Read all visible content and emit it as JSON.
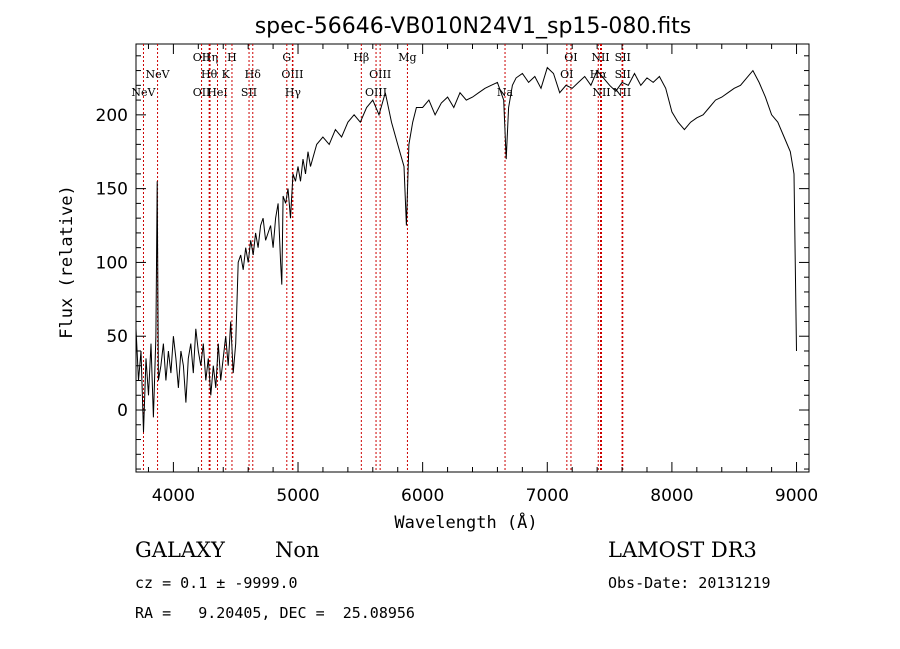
{
  "chart_data": {
    "type": "line",
    "title": "spec-56646-VB010N24V1_sp15-080.fits",
    "xlabel": "Wavelength (Å)",
    "ylabel": "Flux (relative)",
    "xlim": [
      3700,
      9100
    ],
    "ylim": [
      -42,
      248
    ],
    "xticks": [
      4000,
      5000,
      6000,
      7000,
      8000,
      9000
    ],
    "yticks": [
      0,
      50,
      100,
      150,
      200
    ],
    "line_color": "#000000",
    "marker_color": "#cc0000",
    "series": [
      {
        "x": [
          3700,
          3720,
          3740,
          3760,
          3780,
          3800,
          3820,
          3840,
          3860,
          3870,
          3880,
          3900,
          3920,
          3940,
          3960,
          3980,
          4000,
          4020,
          4040,
          4060,
          4080,
          4100,
          4120,
          4140,
          4160,
          4180,
          4200,
          4220,
          4240,
          4260,
          4280,
          4300,
          4320,
          4340,
          4360,
          4380,
          4400,
          4420,
          4440,
          4460,
          4480,
          4500,
          4520,
          4540,
          4560,
          4580,
          4600,
          4620,
          4640,
          4660,
          4680,
          4700,
          4720,
          4740,
          4760,
          4780,
          4800,
          4820,
          4840,
          4860,
          4870,
          4880,
          4900,
          4920,
          4940,
          4960,
          4980,
          5000,
          5020,
          5040,
          5060,
          5080,
          5100,
          5150,
          5200,
          5250,
          5300,
          5350,
          5400,
          5450,
          5500,
          5550,
          5600,
          5650,
          5700,
          5750,
          5800,
          5850,
          5870,
          5890,
          5920,
          5950,
          6000,
          6050,
          6100,
          6150,
          6200,
          6250,
          6300,
          6350,
          6400,
          6450,
          6500,
          6550,
          6600,
          6650,
          6670,
          6690,
          6720,
          6750,
          6800,
          6850,
          6900,
          6950,
          7000,
          7050,
          7100,
          7150,
          7200,
          7250,
          7300,
          7350,
          7400,
          7450,
          7500,
          7550,
          7600,
          7650,
          7700,
          7750,
          7800,
          7850,
          7900,
          7950,
          8000,
          8050,
          8100,
          8150,
          8200,
          8250,
          8300,
          8350,
          8400,
          8450,
          8500,
          8550,
          8600,
          8650,
          8700,
          8750,
          8800,
          8850,
          8900,
          8950,
          8980,
          9000
        ],
        "y": [
          55,
          20,
          40,
          -15,
          35,
          10,
          45,
          -5,
          50,
          155,
          20,
          30,
          45,
          20,
          40,
          25,
          50,
          35,
          15,
          40,
          30,
          5,
          35,
          45,
          25,
          55,
          40,
          30,
          45,
          20,
          35,
          10,
          30,
          15,
          45,
          20,
          35,
          50,
          30,
          60,
          25,
          45,
          100,
          105,
          95,
          110,
          100,
          115,
          105,
          120,
          110,
          125,
          130,
          115,
          120,
          125,
          110,
          130,
          140,
          100,
          85,
          145,
          140,
          150,
          130,
          160,
          155,
          165,
          155,
          170,
          160,
          175,
          165,
          180,
          185,
          180,
          190,
          185,
          195,
          200,
          195,
          205,
          210,
          200,
          215,
          195,
          180,
          165,
          125,
          180,
          195,
          205,
          205,
          210,
          200,
          208,
          212,
          205,
          215,
          210,
          212,
          215,
          218,
          220,
          222,
          210,
          170,
          205,
          220,
          225,
          228,
          222,
          226,
          218,
          232,
          228,
          215,
          220,
          218,
          222,
          226,
          220,
          230,
          225,
          220,
          216,
          222,
          220,
          228,
          220,
          225,
          222,
          226,
          218,
          202,
          195,
          190,
          195,
          198,
          200,
          205,
          210,
          212,
          215,
          218,
          220,
          225,
          230,
          222,
          212,
          200,
          195,
          185,
          175,
          160,
          40
        ]
      }
    ],
    "line_markers": [
      {
        "label": "NeV",
        "x": 3760,
        "row": 3
      },
      {
        "label": "NeV",
        "x": 3873,
        "row": 2
      },
      {
        "label": "OII",
        "x": 4226,
        "row": 1
      },
      {
        "label": "OII",
        "x": 4226,
        "row": 3
      },
      {
        "label": "Hη",
        "x": 4294,
        "row": 1
      },
      {
        "label": "Hθ",
        "x": 4287,
        "row": 2
      },
      {
        "label": "HeI",
        "x": 4354,
        "row": 3
      },
      {
        "label": "H",
        "x": 4470,
        "row": 1
      },
      {
        "label": "K",
        "x": 4420,
        "row": 2
      },
      {
        "label": "Hδ",
        "x": 4637,
        "row": 2
      },
      {
        "label": "SII",
        "x": 4607,
        "row": 3
      },
      {
        "label": "G",
        "x": 4910,
        "row": 1
      },
      {
        "label": "OIII",
        "x": 4955,
        "row": 2
      },
      {
        "label": "Hγ",
        "x": 4959,
        "row": 3
      },
      {
        "label": "Hβ",
        "x": 5508,
        "row": 1
      },
      {
        "label": "OIII",
        "x": 5659,
        "row": 2
      },
      {
        "label": "OIII",
        "x": 5626,
        "row": 3
      },
      {
        "label": "Mg",
        "x": 5878,
        "row": 1
      },
      {
        "label": "Na",
        "x": 6661,
        "row": 3
      },
      {
        "label": "OI",
        "x": 7190,
        "row": 1
      },
      {
        "label": "OI",
        "x": 7157,
        "row": 2
      },
      {
        "label": "NII",
        "x": 7427,
        "row": 1
      },
      {
        "label": "Hα",
        "x": 7409,
        "row": 2
      },
      {
        "label": "NII",
        "x": 7435,
        "row": 3
      },
      {
        "label": "SII",
        "x": 7606,
        "row": 1
      },
      {
        "label": "SII",
        "x": 7606,
        "row": 2
      },
      {
        "label": "NII",
        "x": 7600,
        "row": 3
      }
    ]
  },
  "footer": {
    "class_label": "GALAXY",
    "subclass_label": "Non",
    "survey": "LAMOST DR3",
    "cz_text": "cz = 0.1 ± -9999.0",
    "obs_date_text": "Obs-Date: 20131219",
    "radec_text": "RA =   9.20405, DEC =  25.08956"
  }
}
